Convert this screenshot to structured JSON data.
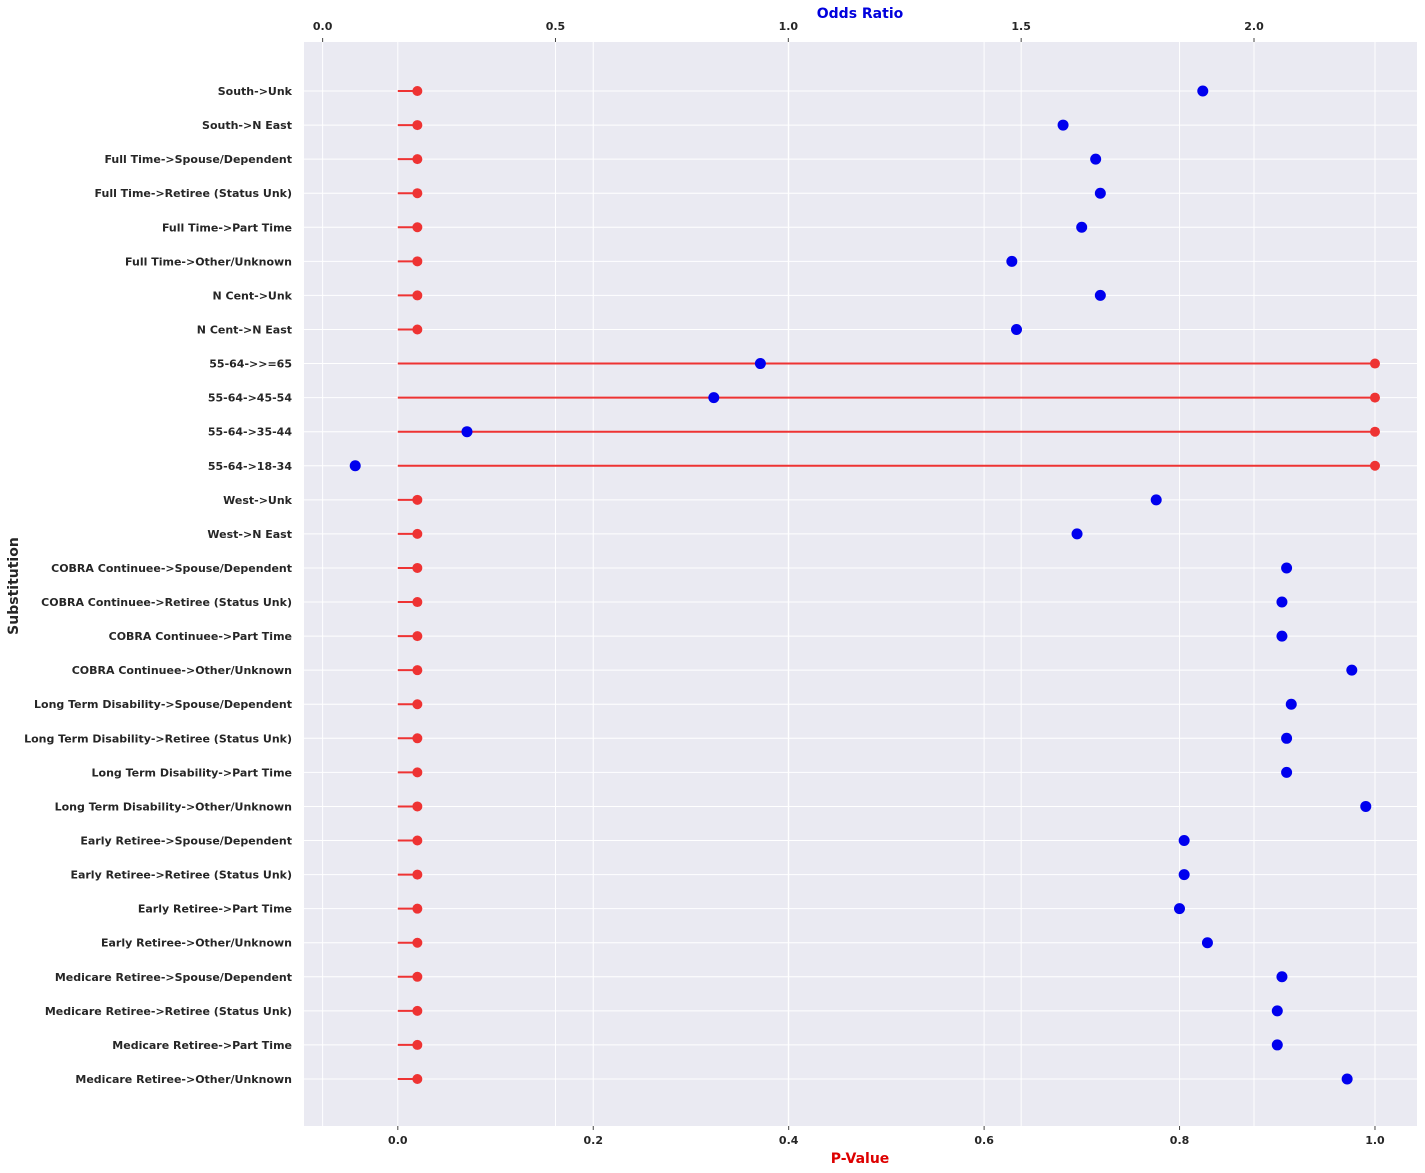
{
  "chart_data": {
    "type": "scatter",
    "ylabel": "Substitution",
    "xlabel_bottom": "P-Value",
    "xlabel_top": "Odds Ratio",
    "colors": {
      "pvalue": "#ee3333",
      "odds_ratio": "#0000ee",
      "xlabel_bottom": "#dd0000",
      "xlabel_top": "#0000dd",
      "plot_bg": "#eaeaf2",
      "grid": "#ffffff"
    },
    "grid": true,
    "bottom_axis": {
      "xlim": [
        -0.096,
        1.043
      ],
      "ticks": [
        0.0,
        0.2,
        0.4,
        0.6,
        0.8,
        1.0
      ],
      "tick_labels": [
        "0.0",
        "0.2",
        "0.4",
        "0.6",
        "0.8",
        "1.0"
      ]
    },
    "top_axis": {
      "xlim": [
        -0.04,
        2.35
      ],
      "ticks": [
        0.0,
        0.5,
        1.0,
        1.5,
        2.0
      ],
      "tick_labels": [
        "0.0",
        "0.5",
        "1.0",
        "1.5",
        "2.0"
      ]
    },
    "categories": [
      "South->Unk",
      "South->N East",
      "Full Time->Spouse/Dependent",
      "Full Time->Retiree (Status Unk)",
      "Full Time->Part Time",
      "Full Time->Other/Unknown",
      "N Cent->Unk",
      "N Cent->N East",
      "55-64->>=65",
      "55-64->45-54",
      "55-64->35-44",
      "55-64->18-34",
      "West->Unk",
      "West->N East",
      "COBRA Continuee->Spouse/Dependent",
      "COBRA Continuee->Retiree (Status Unk)",
      "COBRA Continuee->Part Time",
      "COBRA Continuee->Other/Unknown",
      "Long Term Disability->Spouse/Dependent",
      "Long Term Disability->Retiree (Status Unk)",
      "Long Term Disability->Part Time",
      "Long Term Disability->Other/Unknown",
      "Early Retiree->Spouse/Dependent",
      "Early Retiree->Retiree (Status Unk)",
      "Early Retiree->Part Time",
      "Early Retiree->Other/Unknown",
      "Medicare Retiree->Spouse/Dependent",
      "Medicare Retiree->Retiree (Status Unk)",
      "Medicare Retiree->Part Time",
      "Medicare Retiree->Other/Unknown"
    ],
    "series": [
      {
        "axis": "bottom",
        "marker": "lollipop",
        "values": [
          0.02,
          0.02,
          0.02,
          0.02,
          0.02,
          0.02,
          0.02,
          0.02,
          1.0,
          1.0,
          1.0,
          1.0,
          0.02,
          0.02,
          0.02,
          0.02,
          0.02,
          0.02,
          0.02,
          0.02,
          0.02,
          0.02,
          0.02,
          0.02,
          0.02,
          0.02,
          0.02,
          0.02,
          0.02,
          0.02
        ]
      },
      {
        "axis": "top",
        "marker": "dot",
        "values": [
          1.89,
          1.59,
          1.66,
          1.67,
          1.63,
          1.48,
          1.67,
          1.49,
          0.94,
          0.84,
          0.31,
          0.07,
          1.79,
          1.62,
          2.07,
          2.06,
          2.06,
          2.21,
          2.08,
          2.07,
          2.07,
          2.24,
          1.85,
          1.85,
          1.84,
          1.9,
          2.06,
          2.05,
          2.05,
          2.2
        ]
      }
    ]
  }
}
